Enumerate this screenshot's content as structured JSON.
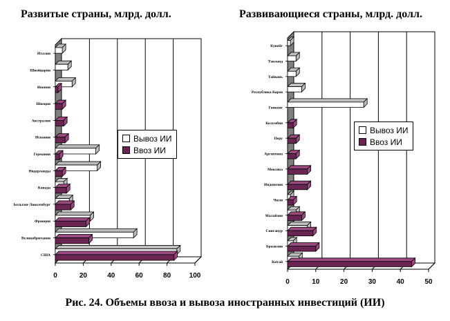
{
  "caption": "Рис. 24. Объемы ввоза и вывоза иностранных инвестиций (ИИ)",
  "colors": {
    "export": "#ffffff",
    "import": "#6b2552",
    "export_top": "#bdbdbd",
    "import_top": "#9a4a7e",
    "wall": "#7f7f7f"
  },
  "chart_data": [
    {
      "type": "bar",
      "title": "Развитые страны, млрд. долл.",
      "categories": [
        "США",
        "Великобритания",
        "Франция",
        "Бельгия-Люксембург",
        "Канада",
        "Нидерланды",
        "Германия",
        "Испания",
        "Австралия",
        "Швеция",
        "Япония",
        "Швейцария",
        "Италия"
      ],
      "series": [
        {
          "name": "Вывоз ИИ",
          "key": "export",
          "values": [
            87,
            56,
            25,
            10,
            6,
            30,
            29,
            0,
            0,
            0,
            12,
            9,
            5
          ]
        },
        {
          "name": "Ввоз ИИ",
          "key": "import",
          "values": [
            85,
            24,
            22,
            11,
            8,
            5,
            3,
            7,
            6,
            5,
            2,
            0,
            0
          ]
        }
      ],
      "xlim": [
        0,
        100
      ],
      "xticks": [
        "0",
        "20",
        "40",
        "60",
        "80",
        "100"
      ],
      "legend": "center-right"
    },
    {
      "type": "bar",
      "title": "Развивающиеся страны, млрд. долл.",
      "categories": [
        "Китай",
        "Бразилия",
        "Сингапур",
        "Малайзия",
        "Чили",
        "Индонезия",
        "Мексика",
        "Аргентина",
        "Перу",
        "Колумбия",
        "Гонконг",
        "Республика Корея",
        "Тайвань",
        "Таиланд",
        "Кувейт"
      ],
      "series": [
        {
          "name": "Вывоз ИИ",
          "key": "export",
          "values": [
            4,
            2,
            7,
            3,
            1,
            0,
            0,
            0,
            0,
            0,
            27,
            5,
            3,
            3,
            1
          ]
        },
        {
          "name": "Ввоз ИИ",
          "key": "import",
          "values": [
            44,
            10,
            9,
            5,
            2,
            7,
            7,
            3,
            3,
            2,
            0,
            0,
            0,
            0,
            0
          ]
        }
      ],
      "xlim": [
        0,
        50
      ],
      "xticks": [
        "0",
        "10",
        "20",
        "30",
        "40",
        "50"
      ],
      "legend": "center-right"
    }
  ]
}
